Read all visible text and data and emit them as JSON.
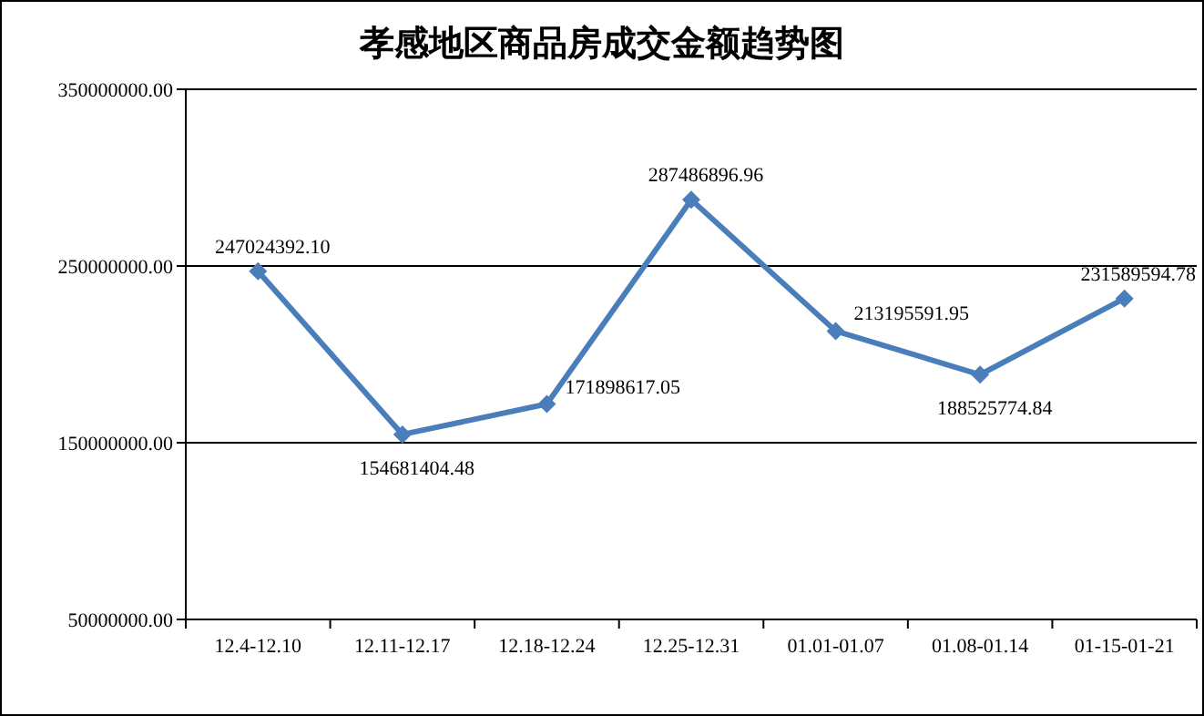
{
  "chart_data": {
    "type": "line",
    "title": "孝感地区商品房成交金额趋势图",
    "categories": [
      "12.4-12.10",
      "12.11-12.17",
      "12.18-12.24",
      "12.25-12.31",
      "01.01-01.07",
      "01.08-01.14",
      "01-15-01-21"
    ],
    "series": [
      {
        "color": "#4a7ebb",
        "values": [
          247024392.1,
          154681404.48,
          171898617.05,
          287486896.96,
          213195591.95,
          188525774.84,
          231589594.78
        ],
        "value_labels": [
          "247024392.10",
          "154681404.48",
          "171898617.05",
          "287486896.96",
          "213195591.95",
          "188525774.84",
          "231589594.78"
        ]
      }
    ],
    "ylim": [
      50000000,
      350000000
    ],
    "yticks": [
      {
        "value": 50000000,
        "label": "50000000.00"
      },
      {
        "value": 150000000,
        "label": "150000000.00"
      },
      {
        "value": 250000000,
        "label": "250000000.00"
      },
      {
        "value": 350000000,
        "label": "350000000.00"
      }
    ],
    "grid": "y",
    "marker": "diamond",
    "line_style": "solid"
  }
}
